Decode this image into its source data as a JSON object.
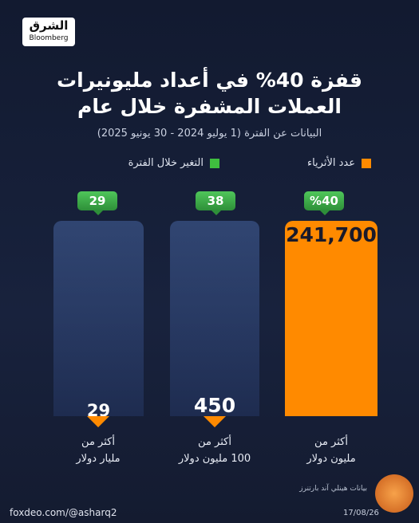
{
  "header": {
    "logo": "الشرق",
    "logo_sub": "Bloomberg"
  },
  "title": [
    "قفزة 40% في أعداد مليونيرات",
    "العملات المشفرة خلال عام"
  ],
  "subtitle": "البيانات عن الفترة (1 يوليو 2024 - 30 يونيو 2025)",
  "legend": [
    {
      "label": "عدد الأثرياء",
      "color": "#ff8a00"
    },
    {
      "label": "التغير خلال الفترة",
      "color": "#3fbf3f"
    }
  ],
  "columns": [
    {
      "change": "%40",
      "value": "241,700",
      "label": [
        "أكثر من",
        "مليون دولار"
      ]
    },
    {
      "change": "38",
      "value": "450",
      "label": [
        "أكثر من",
        "100 مليون دولار"
      ]
    },
    {
      "change": "29",
      "value": "29",
      "label": [
        "أكثر من",
        "مليار دولار"
      ]
    }
  ],
  "footer": {
    "source": "بيانات هينلي آند بارتنرز",
    "date": "17/08/26",
    "watermark": "foxdeo.com/@asharq2"
  }
}
